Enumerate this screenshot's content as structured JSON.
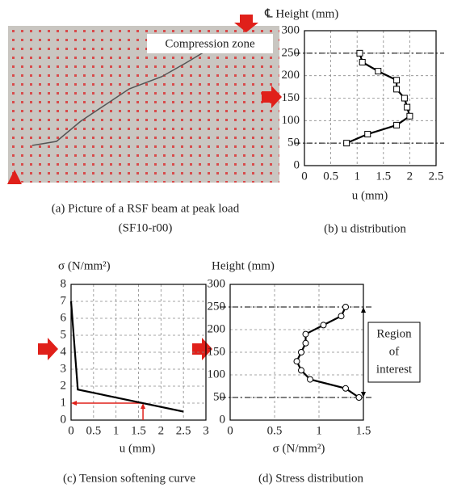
{
  "photo": {
    "label": "Compression zone",
    "caption": [
      "(a) Picture of a RSF beam at peak load",
      "(SF10-r00)"
    ]
  },
  "chart_data": [
    {
      "type": "line",
      "caption": "(b) u distribution",
      "ylabel": "℄ Height (mm)",
      "xlabel": "u (mm)",
      "x": [
        0.8,
        1.2,
        1.75,
        2.0,
        1.95,
        1.9,
        1.75,
        1.75,
        1.4,
        1.1,
        1.05
      ],
      "series": [
        {
          "values": [
            50,
            70,
            90,
            110,
            130,
            150,
            170,
            190,
            210,
            230,
            250
          ],
          "color": "#000000",
          "marker": "square"
        }
      ],
      "xlim": [
        0,
        2.5
      ],
      "xticks": [
        0,
        0.5,
        1,
        1.5,
        2,
        2.5
      ],
      "ylim": [
        0,
        300
      ],
      "yticks": [
        0,
        50,
        100,
        150,
        200,
        250,
        300
      ],
      "grid": true,
      "refs": [
        50,
        250
      ]
    },
    {
      "type": "line",
      "caption": "(c) Tension softening curve",
      "ylabel": "σ (N/mm²)",
      "xlabel": "u (mm)",
      "x": [
        0,
        0.15,
        2.5
      ],
      "series": [
        {
          "values": [
            7,
            1.8,
            0.5
          ],
          "color": "#000000",
          "marker": "none"
        }
      ],
      "xlim": [
        0,
        3
      ],
      "xticks": [
        0,
        0.5,
        1,
        1.5,
        2,
        2.5,
        3
      ],
      "ylim": [
        0,
        8
      ],
      "yticks": [
        0,
        1,
        2,
        3,
        4,
        5,
        6,
        7,
        8
      ],
      "grid": true,
      "pointer": {
        "x": 1.6,
        "y": 1,
        "color": "#e0201a"
      }
    },
    {
      "type": "line",
      "caption": "(d) Stress distribution",
      "ylabel": "Height (mm)",
      "xlabel": "σ (N/mm²)",
      "x": [
        1.45,
        1.3,
        0.9,
        0.8,
        0.75,
        0.8,
        0.85,
        0.85,
        1.05,
        1.25,
        1.3
      ],
      "series": [
        {
          "values": [
            50,
            70,
            90,
            110,
            130,
            150,
            170,
            190,
            210,
            230,
            250
          ],
          "color": "#000000",
          "marker": "circle"
        }
      ],
      "xlim": [
        0,
        1.5
      ],
      "xticks": [
        0,
        0.5,
        1,
        1.5
      ],
      "ylim": [
        0,
        300
      ],
      "yticks": [
        0,
        50,
        100,
        150,
        200,
        250,
        300
      ],
      "grid": true,
      "refs": [
        50,
        250
      ],
      "region": {
        "x": 1.5,
        "label": [
          "Region",
          "of",
          "interest"
        ]
      }
    }
  ]
}
